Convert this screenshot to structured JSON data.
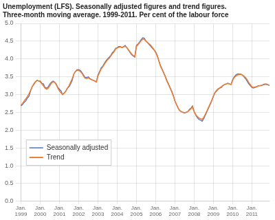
{
  "chart_data": {
    "type": "line",
    "title": "Unemployment (LFS). Seasonally adjusted figures and trend figures.",
    "subtitle": "Three-month moving average. 1999-2011. Per cent of the labour force",
    "categories": [
      "Jan.\n1999",
      null,
      null,
      null,
      null,
      null,
      null,
      null,
      null,
      null,
      null,
      null,
      "Jan.\n2000",
      null,
      null,
      null,
      null,
      null,
      null,
      null,
      null,
      null,
      null,
      null,
      "Jan.\n2001",
      null,
      null,
      null,
      null,
      null,
      null,
      null,
      null,
      null,
      null,
      null,
      "Jan.\n2002",
      null,
      null,
      null,
      null,
      null,
      null,
      null,
      null,
      null,
      null,
      null,
      "Jan.\n2003",
      null,
      null,
      null,
      null,
      null,
      null,
      null,
      null,
      null,
      null,
      null,
      "Jan.\n2004",
      null,
      null,
      null,
      null,
      null,
      null,
      null,
      null,
      null,
      null,
      null,
      "Jan.\n2005",
      null,
      null,
      null,
      null,
      null,
      null,
      null,
      null,
      null,
      null,
      null,
      "Jan.\n2006",
      null,
      null,
      null,
      null,
      null,
      null,
      null,
      null,
      null,
      null,
      null,
      "Jan.\n2007",
      null,
      null,
      null,
      null,
      null,
      null,
      null,
      null,
      null,
      null,
      null,
      "Jan.\n2008",
      null,
      null,
      null,
      null,
      null,
      null,
      null,
      null,
      null,
      null,
      null,
      "Jan.\n2009",
      null,
      null,
      null,
      null,
      null,
      null,
      null,
      null,
      null,
      null,
      null,
      "Jan.\n2010",
      null,
      null,
      null,
      null,
      null,
      null,
      null,
      null,
      null,
      null,
      null,
      "Jan.\n2011",
      null,
      null,
      null,
      null,
      null,
      null,
      null,
      null,
      null,
      null,
      null
    ],
    "series": [
      {
        "name": "Seasonally adjusted",
        "color": "#4472C4",
        "values": [
          2.68,
          2.72,
          2.78,
          2.82,
          2.9,
          2.95,
          3.1,
          3.22,
          3.28,
          3.35,
          3.4,
          3.38,
          3.38,
          3.32,
          3.3,
          3.2,
          3.18,
          3.22,
          3.3,
          3.35,
          3.38,
          3.35,
          3.3,
          3.2,
          3.15,
          3.1,
          3.0,
          3.05,
          3.1,
          3.18,
          3.22,
          3.3,
          3.4,
          3.58,
          3.65,
          3.7,
          3.7,
          3.68,
          3.62,
          3.55,
          3.48,
          3.48,
          3.5,
          3.45,
          3.42,
          3.4,
          3.38,
          3.35,
          3.55,
          3.65,
          3.75,
          3.8,
          3.88,
          3.95,
          4.0,
          4.05,
          4.1,
          4.18,
          4.22,
          4.3,
          4.32,
          4.35,
          4.35,
          4.32,
          4.35,
          4.38,
          4.32,
          4.25,
          4.18,
          4.12,
          4.08,
          4.05,
          4.38,
          4.42,
          4.48,
          4.55,
          4.6,
          4.58,
          4.5,
          4.45,
          4.4,
          4.35,
          4.3,
          4.25,
          4.2,
          4.1,
          3.95,
          3.82,
          3.72,
          3.62,
          3.52,
          3.4,
          3.3,
          3.2,
          3.1,
          2.98,
          2.82,
          2.72,
          2.62,
          2.55,
          2.52,
          2.5,
          2.48,
          2.5,
          2.52,
          2.58,
          2.62,
          2.68,
          2.52,
          2.42,
          2.35,
          2.3,
          2.28,
          2.25,
          2.32,
          2.42,
          2.52,
          2.62,
          2.72,
          2.82,
          2.95,
          3.05,
          3.1,
          3.15,
          3.18,
          3.2,
          3.25,
          3.28,
          3.3,
          3.32,
          3.3,
          3.28,
          3.42,
          3.5,
          3.55,
          3.58,
          3.58,
          3.58,
          3.55,
          3.5,
          3.45,
          3.38,
          3.3,
          3.25,
          3.2,
          3.18,
          3.2,
          3.22,
          3.25,
          3.25,
          3.25,
          3.28,
          3.3,
          3.3,
          3.28,
          3.25
        ]
      },
      {
        "name": "Trend",
        "color": "#ED7D31",
        "values": [
          2.7,
          2.75,
          2.82,
          2.88,
          2.94,
          3.02,
          3.12,
          3.22,
          3.3,
          3.36,
          3.4,
          3.38,
          3.36,
          3.3,
          3.25,
          3.18,
          3.15,
          3.18,
          3.25,
          3.32,
          3.36,
          3.34,
          3.28,
          3.18,
          3.1,
          3.05,
          3.0,
          3.04,
          3.1,
          3.18,
          3.25,
          3.35,
          3.45,
          3.58,
          3.65,
          3.68,
          3.68,
          3.65,
          3.6,
          3.52,
          3.46,
          3.45,
          3.47,
          3.44,
          3.42,
          3.4,
          3.38,
          3.36,
          3.52,
          3.62,
          3.72,
          3.78,
          3.85,
          3.92,
          3.98,
          4.02,
          4.08,
          4.15,
          4.2,
          4.28,
          4.31,
          4.33,
          4.34,
          4.32,
          4.34,
          4.36,
          4.32,
          4.26,
          4.2,
          4.14,
          4.1,
          4.07,
          4.35,
          4.4,
          4.46,
          4.52,
          4.56,
          4.55,
          4.5,
          4.46,
          4.42,
          4.38,
          4.32,
          4.26,
          4.18,
          4.08,
          3.94,
          3.8,
          3.7,
          3.6,
          3.5,
          3.38,
          3.28,
          3.18,
          3.08,
          2.96,
          2.82,
          2.72,
          2.62,
          2.55,
          2.52,
          2.5,
          2.49,
          2.5,
          2.52,
          2.56,
          2.6,
          2.65,
          2.52,
          2.44,
          2.38,
          2.34,
          2.32,
          2.3,
          2.36,
          2.45,
          2.54,
          2.64,
          2.74,
          2.84,
          2.96,
          3.06,
          3.12,
          3.16,
          3.19,
          3.22,
          3.26,
          3.28,
          3.3,
          3.31,
          3.3,
          3.28,
          3.4,
          3.48,
          3.52,
          3.55,
          3.56,
          3.57,
          3.55,
          3.52,
          3.48,
          3.42,
          3.34,
          3.28,
          3.22,
          3.2,
          3.21,
          3.22,
          3.24,
          3.25,
          3.26,
          3.27,
          3.28,
          3.28,
          3.27,
          3.26
        ]
      }
    ],
    "ylim": [
      0.0,
      5.0
    ],
    "yticks": [
      {
        "value": 0.0,
        "label": "0.0"
      },
      0.5,
      {
        "value": 1.0,
        "label": "1.0"
      },
      1.5,
      {
        "value": 2.0,
        "label": "2.0"
      },
      2.5,
      {
        "value": 3.0,
        "label": "3.0"
      },
      3.5,
      {
        "value": 4.0,
        "label": "4.0"
      },
      4.5,
      {
        "value": 5.0,
        "label": "5.0"
      }
    ],
    "grid": true,
    "legend": "lower left"
  }
}
